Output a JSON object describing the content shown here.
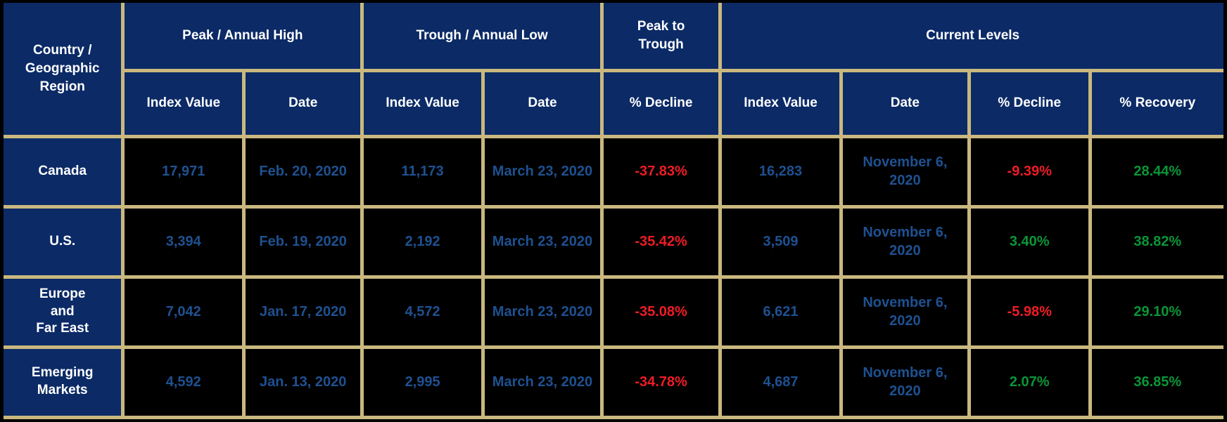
{
  "colors": {
    "header_navy": "#0b2a66",
    "grid_tan": "#c9b87f",
    "value_blue": "#1e5191",
    "negative_red": "#ee1c25",
    "positive_green": "#0a9638",
    "header_text": "#ffffff",
    "cell_black": "#000000"
  },
  "chart_data": {
    "type": "table",
    "header": {
      "country": "Country /\nGeographic\nRegion",
      "groups": [
        "Peak / Annual High",
        "Trough / Annual Low",
        "Peak to\nTrough",
        "Current Levels"
      ],
      "subheaders": [
        "Index Value",
        "Date",
        "Index Value",
        "Date",
        "% Decline",
        "Index Value",
        "Date",
        "% Decline",
        "% Recovery"
      ]
    },
    "rows": [
      {
        "region": "Canada",
        "peak_index": "17,971",
        "peak_date": "Feb. 20, 2020",
        "trough_index": "11,173",
        "trough_date": "March 23, 2020",
        "peak_to_trough_decline": "-37.83%",
        "current_index": "16,283",
        "current_date": "November 6, 2020",
        "current_decline": "-9.39%",
        "current_recovery": "28.44%"
      },
      {
        "region": "U.S.",
        "peak_index": "3,394",
        "peak_date": "Feb. 19, 2020",
        "trough_index": "2,192",
        "trough_date": "March 23, 2020",
        "peak_to_trough_decline": "-35.42%",
        "current_index": "3,509",
        "current_date": "November 6, 2020",
        "current_decline": "3.40%",
        "current_recovery": "38.82%"
      },
      {
        "region": "Europe\nand\nFar East",
        "peak_index": "7,042",
        "peak_date": "Jan. 17, 2020",
        "trough_index": "4,572",
        "trough_date": "March 23, 2020",
        "peak_to_trough_decline": "-35.08%",
        "current_index": "6,621",
        "current_date": "November 6, 2020",
        "current_decline": "-5.98%",
        "current_recovery": "29.10%"
      },
      {
        "region": "Emerging\nMarkets",
        "peak_index": "4,592",
        "peak_date": "Jan. 13, 2020",
        "trough_index": "2,995",
        "trough_date": "March 23, 2020",
        "peak_to_trough_decline": "-34.78%",
        "current_index": "4,687",
        "current_date": "November 6, 2020",
        "current_decline": "2.07%",
        "current_recovery": "36.85%"
      }
    ]
  }
}
